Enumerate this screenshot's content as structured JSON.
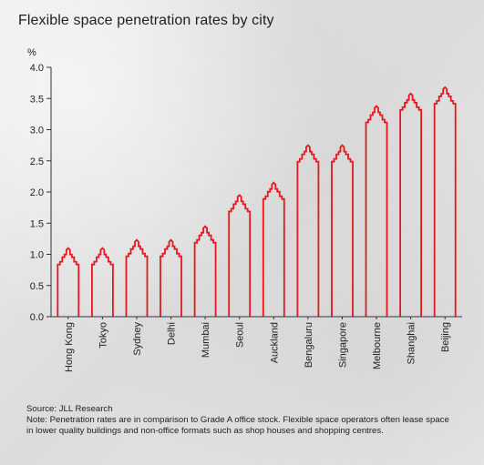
{
  "title": "Flexible space penetration rates by city",
  "footnote": {
    "source": "Source: JLL Research",
    "note": "Note: Penetration rates are in comparison to Grade A office stock. Flexible space operators often lease space in lower quality buildings and non-office formats such as shop houses and shopping centres."
  },
  "colors": {
    "bar_outline": "#e8161d",
    "axis": "#333333"
  },
  "chart_data": {
    "type": "bar",
    "title": "Flexible space penetration rates by city",
    "ylabel": "%",
    "xlabel": "",
    "ylim": [
      0,
      4.0
    ],
    "yticks": [
      "0.0",
      "0.5",
      "1.0",
      "1.5",
      "2.0",
      "2.5",
      "3.0",
      "3.5",
      "4.0"
    ],
    "grid": false,
    "categories": [
      "Hong Kong",
      "Tokyo",
      "Sydney",
      "Delhi",
      "Mumbai",
      "Seoul",
      "Auckland",
      "Bengaluru",
      "Singapore",
      "Melbourne",
      "Shanghai",
      "Beijing"
    ],
    "values": [
      1.1,
      1.1,
      1.23,
      1.23,
      1.45,
      1.95,
      2.15,
      2.75,
      2.75,
      3.38,
      3.58,
      3.68
    ]
  }
}
